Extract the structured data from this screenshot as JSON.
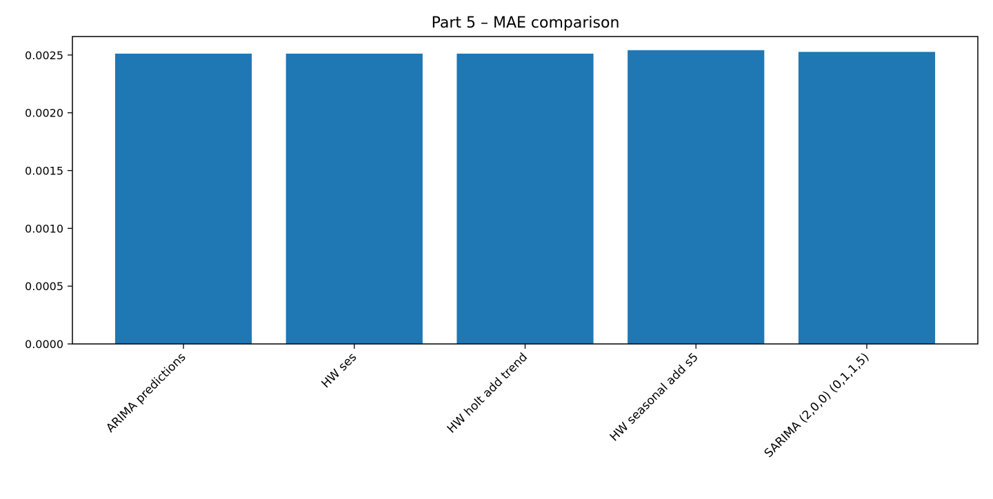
{
  "chart_data": {
    "type": "bar",
    "title": "Part 5 – MAE comparison",
    "xlabel": "",
    "ylabel": "",
    "categories": [
      "ARIMA predictions",
      "HW ses",
      "HW holt add trend",
      "HW seasonal add s5",
      "SARIMA (2,0,0) (0,1,1,5)"
    ],
    "values": [
      0.002512,
      0.002512,
      0.002512,
      0.002542,
      0.002527
    ],
    "ylim": [
      0,
      0.00266
    ],
    "yticks": [
      "0.0000",
      "0.0005",
      "0.0010",
      "0.0015",
      "0.0020",
      "0.0025"
    ],
    "grid": false,
    "legend": "none",
    "bar_color": "#1f77b4"
  }
}
